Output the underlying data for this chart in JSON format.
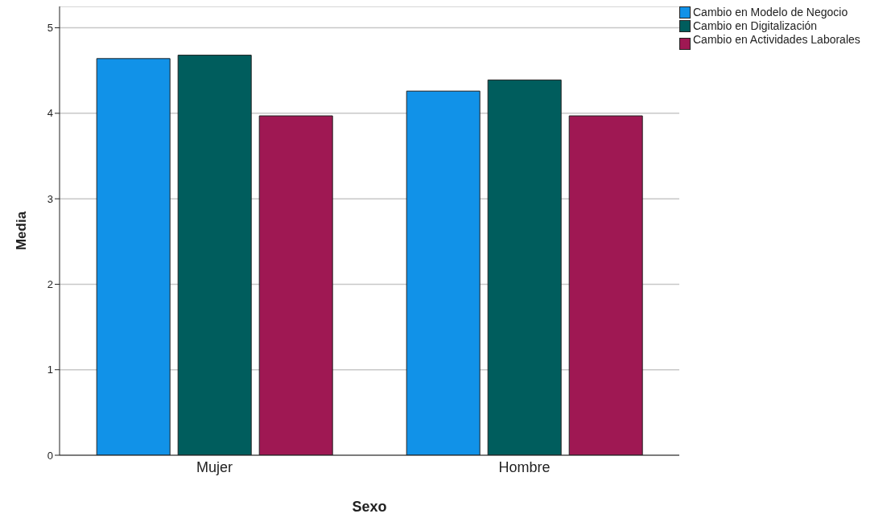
{
  "chart_data": {
    "type": "bar",
    "xlabel": "Sexo",
    "ylabel": "Media",
    "categories": [
      "Mujer",
      "Hombre"
    ],
    "series": [
      {
        "name": "Cambio en Modelo de Negocio",
        "color": "#1192e8",
        "values": [
          4.64,
          4.26
        ]
      },
      {
        "name": "Cambio en Digitalización",
        "color": "#005d5d",
        "values": [
          4.68,
          4.39
        ]
      },
      {
        "name": "Cambio en Actividades Laborales",
        "color": "#9f1853",
        "values": [
          3.97,
          3.97
        ]
      }
    ],
    "ylim": [
      0,
      5.25
    ],
    "yticks": [
      0,
      1,
      2,
      3,
      4,
      5
    ],
    "grid": "y",
    "legend": "top right"
  }
}
